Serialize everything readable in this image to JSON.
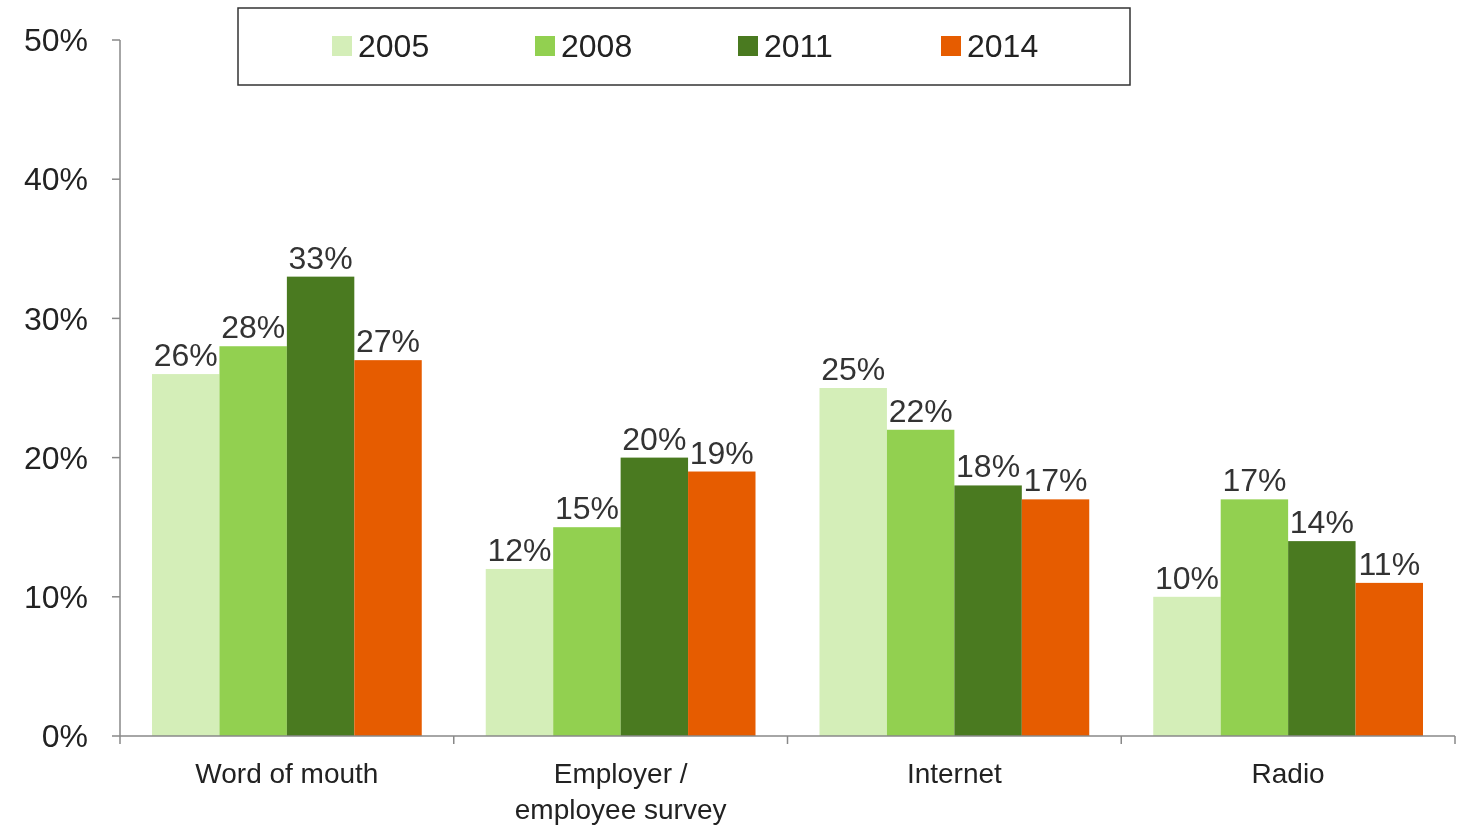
{
  "chart_data": {
    "type": "bar",
    "categories": [
      "Word of mouth",
      "Employer / employee survey",
      "Internet",
      "Radio"
    ],
    "series": [
      {
        "name": "2005",
        "color": "#d4eeb8",
        "values": [
          26,
          12,
          25,
          10
        ]
      },
      {
        "name": "2008",
        "color": "#92d050",
        "values": [
          28,
          15,
          22,
          17
        ]
      },
      {
        "name": "2011",
        "color": "#4a7a20",
        "values": [
          33,
          20,
          18,
          14
        ]
      },
      {
        "name": "2014",
        "color": "#e65c00",
        "values": [
          27,
          19,
          17,
          11
        ]
      }
    ],
    "ylim": [
      0,
      50
    ],
    "yticks": [
      {
        "value": 0,
        "label": "0%"
      },
      {
        "value": 10,
        "label": "10%"
      },
      {
        "value": 20,
        "label": "20%"
      },
      {
        "value": 30,
        "label": "30%"
      },
      {
        "value": 40,
        "label": "40%"
      },
      {
        "value": 50,
        "label": "50%"
      }
    ],
    "value_labels": [
      [
        "26%",
        "12%",
        "25%",
        "10%"
      ],
      [
        "28%",
        "15%",
        "22%",
        "17%"
      ],
      [
        "33%",
        "20%",
        "18%",
        "14%"
      ],
      [
        "27%",
        "19%",
        "17%",
        "11%"
      ]
    ],
    "grid": false,
    "legend": "top"
  }
}
